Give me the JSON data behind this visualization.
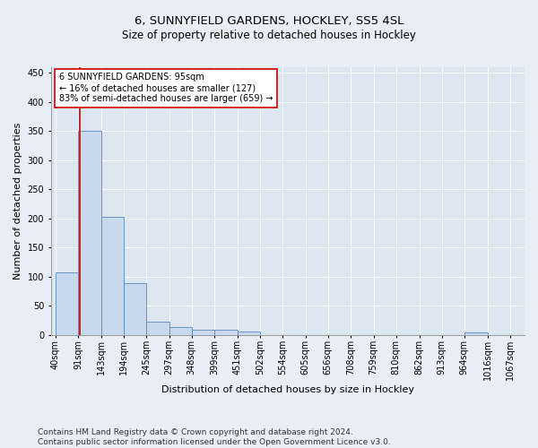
{
  "title_line1": "6, SUNNYFIELD GARDENS, HOCKLEY, SS5 4SL",
  "title_line2": "Size of property relative to detached houses in Hockley",
  "xlabel": "Distribution of detached houses by size in Hockley",
  "ylabel": "Number of detached properties",
  "footnote": "Contains HM Land Registry data © Crown copyright and database right 2024.\nContains public sector information licensed under the Open Government Licence v3.0.",
  "bar_left_edges": [
    40,
    91,
    143,
    194,
    245,
    297,
    348,
    399,
    451,
    502,
    554,
    605,
    656,
    708,
    759,
    810,
    862,
    913,
    964,
    1016
  ],
  "bar_widths": [
    51,
    52,
    51,
    51,
    52,
    51,
    51,
    52,
    51,
    52,
    51,
    51,
    52,
    51,
    51,
    52,
    51,
    51,
    52,
    51
  ],
  "bar_heights": [
    107,
    350,
    203,
    88,
    22,
    13,
    8,
    8,
    5,
    0,
    0,
    0,
    0,
    0,
    0,
    0,
    0,
    0,
    4,
    0
  ],
  "bar_color": "#c9d9ed",
  "bar_edge_color": "#5a87b8",
  "property_x": 95,
  "annotation_line1": "6 SUNNYFIELD GARDENS: 95sqm",
  "annotation_line2": "← 16% of detached houses are smaller (127)",
  "annotation_line3": "83% of semi-detached houses are larger (659) →",
  "annotation_box_color": "#ffffff",
  "annotation_box_edge_color": "#cc0000",
  "red_line_color": "#cc0000",
  "ylim": [
    0,
    460
  ],
  "yticks": [
    0,
    50,
    100,
    150,
    200,
    250,
    300,
    350,
    400,
    450
  ],
  "xlim": [
    30,
    1100
  ],
  "bg_color": "#e8eef5",
  "plot_bg_color": "#dce6f0",
  "grid_color": "#ffffff",
  "title_fontsize": 9.5,
  "subtitle_fontsize": 8.5,
  "tick_label_size": 7,
  "xlabel_fontsize": 8,
  "ylabel_fontsize": 8,
  "annotation_fontsize": 7,
  "footnote_fontsize": 6.5,
  "xtick_labels": [
    "40sqm",
    "91sqm",
    "143sqm",
    "194sqm",
    "245sqm",
    "297sqm",
    "348sqm",
    "399sqm",
    "451sqm",
    "502sqm",
    "554sqm",
    "605sqm",
    "656sqm",
    "708sqm",
    "759sqm",
    "810sqm",
    "862sqm",
    "913sqm",
    "964sqm",
    "1016sqm",
    "1067sqm"
  ]
}
